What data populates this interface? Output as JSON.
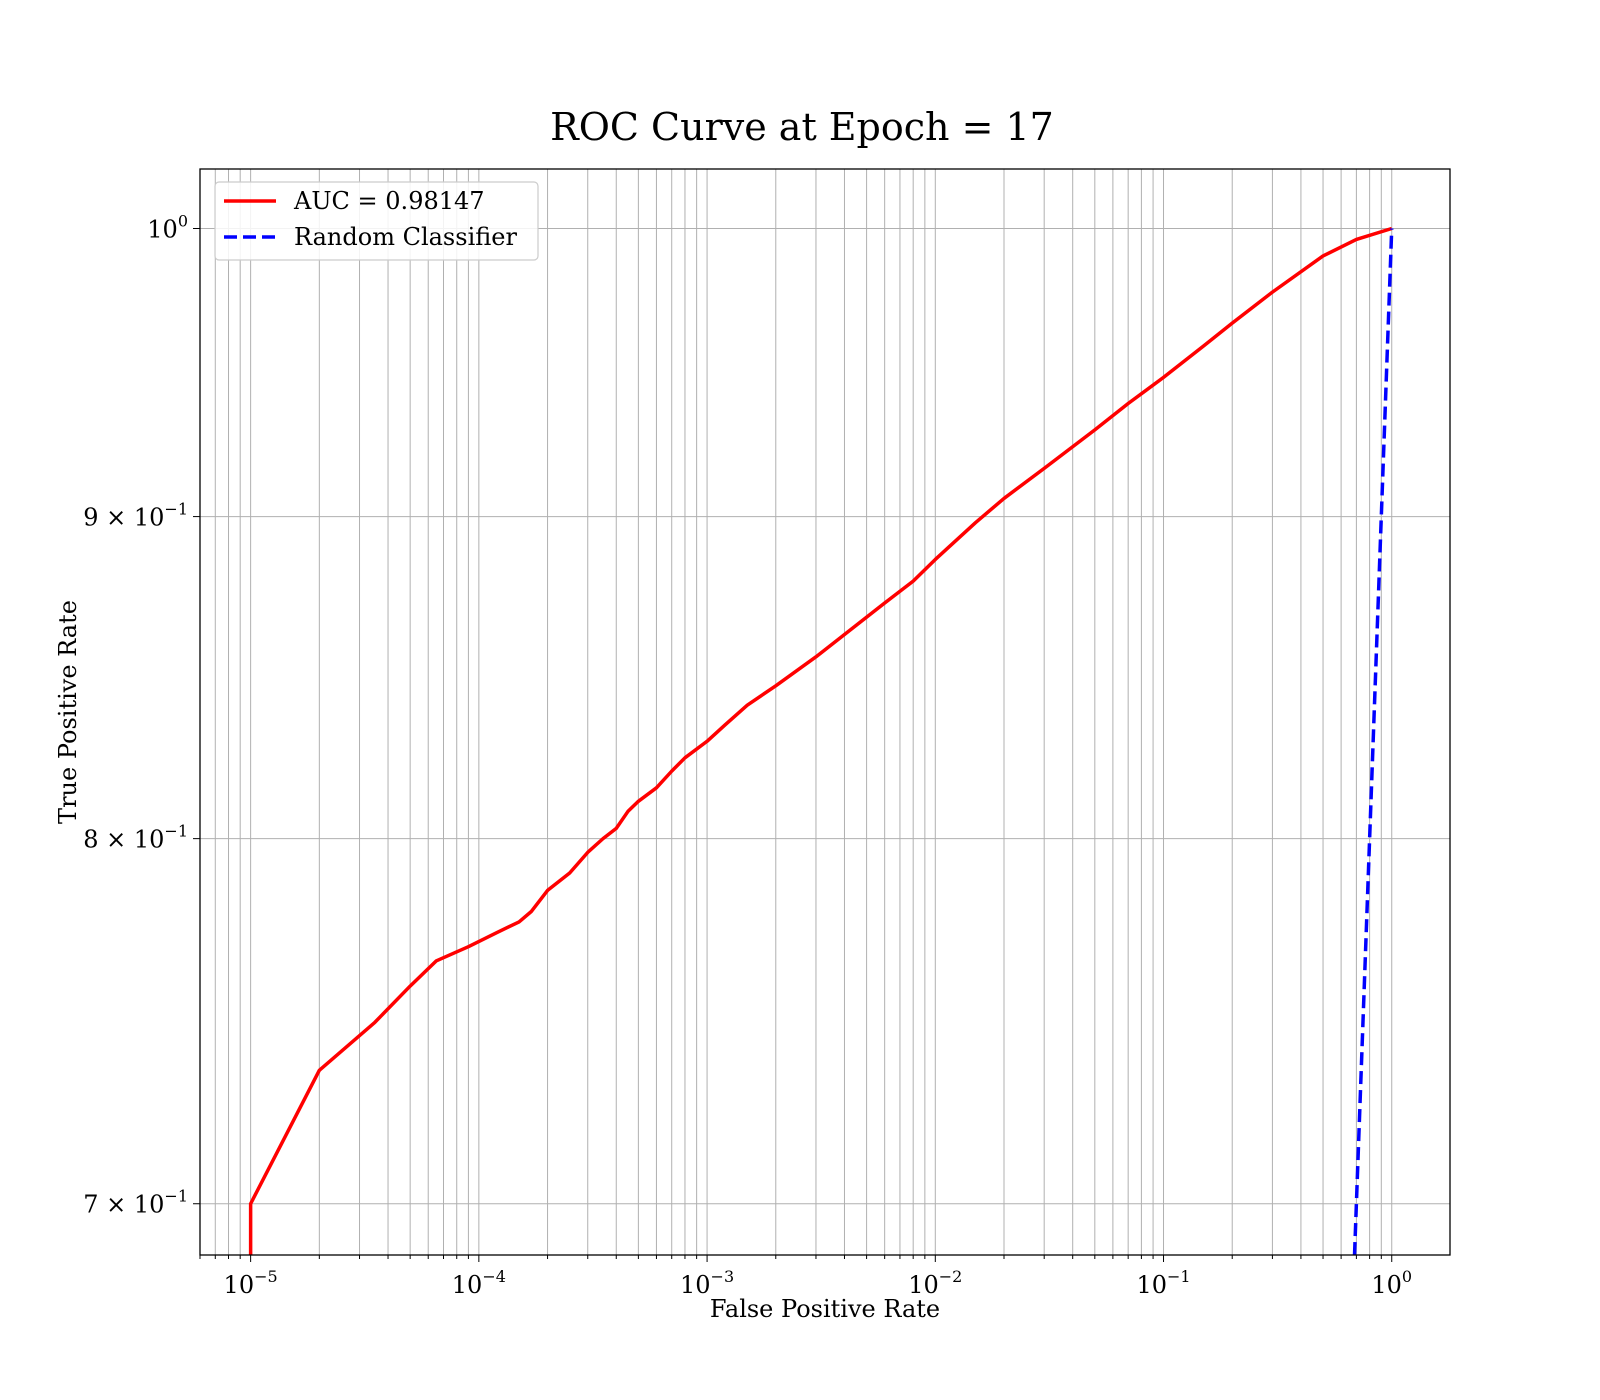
{
  "chart_data": {
    "type": "line",
    "title": "ROC Curve at Epoch = 17",
    "xlabel": "False Positive Rate",
    "ylabel": "True Positive Rate",
    "xscale": "log",
    "yscale": "log",
    "xlim": [
      6e-06,
      1.8
    ],
    "ylim": [
      0.687,
      1.022
    ],
    "grid": "both-major-and-minor-x",
    "legend_placement": "top-left",
    "xticks": [
      {
        "value": 1e-05,
        "base": "10",
        "exp": "−5"
      },
      {
        "value": 0.0001,
        "base": "10",
        "exp": "−4"
      },
      {
        "value": 0.001,
        "base": "10",
        "exp": "−3"
      },
      {
        "value": 0.01,
        "base": "10",
        "exp": "−2"
      },
      {
        "value": 0.1,
        "base": "10",
        "exp": "−1"
      },
      {
        "value": 1,
        "base": "10",
        "exp": "0"
      }
    ],
    "yticks": [
      {
        "value": 1.0,
        "base": "10",
        "exp": "0"
      },
      {
        "value": 0.9,
        "base": "9 × 10",
        "exp": "−1"
      },
      {
        "value": 0.8,
        "base": "8 × 10",
        "exp": "−1"
      },
      {
        "value": 0.7,
        "base": "7 × 10",
        "exp": "−1"
      }
    ],
    "series": [
      {
        "name": "AUC = 0.98147",
        "color": "#ff0000",
        "style": "solid",
        "points": [
          [
            1e-05,
            0.687
          ],
          [
            1e-05,
            0.7
          ],
          [
            2e-05,
            0.735
          ],
          [
            3.5e-05,
            0.748
          ],
          [
            5e-05,
            0.758
          ],
          [
            6.5e-05,
            0.765
          ],
          [
            9e-05,
            0.769
          ],
          [
            0.00012,
            0.773
          ],
          [
            0.00015,
            0.776
          ],
          [
            0.00017,
            0.779
          ],
          [
            0.0002,
            0.785
          ],
          [
            0.00025,
            0.79
          ],
          [
            0.0003,
            0.796
          ],
          [
            0.00035,
            0.8
          ],
          [
            0.0004,
            0.803
          ],
          [
            0.00045,
            0.808
          ],
          [
            0.0005,
            0.811
          ],
          [
            0.0006,
            0.815
          ],
          [
            0.0007,
            0.82
          ],
          [
            0.0008,
            0.824
          ],
          [
            0.001,
            0.829
          ],
          [
            0.0012,
            0.834
          ],
          [
            0.0015,
            0.84
          ],
          [
            0.002,
            0.846
          ],
          [
            0.003,
            0.855
          ],
          [
            0.004,
            0.862
          ],
          [
            0.006,
            0.872
          ],
          [
            0.008,
            0.879
          ],
          [
            0.01,
            0.886
          ],
          [
            0.015,
            0.898
          ],
          [
            0.02,
            0.906
          ],
          [
            0.03,
            0.916
          ],
          [
            0.05,
            0.929
          ],
          [
            0.07,
            0.938
          ],
          [
            0.1,
            0.947
          ],
          [
            0.15,
            0.958
          ],
          [
            0.2,
            0.966
          ],
          [
            0.3,
            0.977
          ],
          [
            0.5,
            0.99
          ],
          [
            0.7,
            0.996
          ],
          [
            1.0,
            1.0
          ]
        ]
      },
      {
        "name": "Random Classifier",
        "color": "#0000ff",
        "style": "dashed",
        "points": [
          [
            0.687,
            0.687
          ],
          [
            0.7,
            0.7
          ],
          [
            0.8,
            0.8
          ],
          [
            0.9,
            0.9
          ],
          [
            1.0,
            1.0
          ]
        ]
      }
    ]
  }
}
